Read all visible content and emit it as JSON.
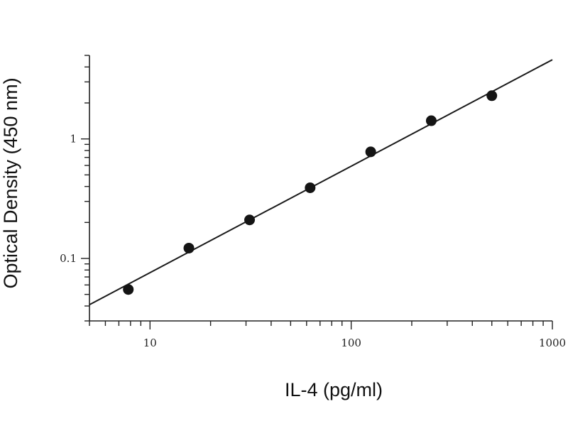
{
  "chart_data": {
    "type": "scatter",
    "title": "",
    "xlabel": "IL-4 (pg/ml)",
    "ylabel": "Optical Density (450 nm)",
    "x_scale": "log",
    "y_scale": "log",
    "xlim": [
      5,
      1000
    ],
    "ylim": [
      0.03,
      5
    ],
    "x_tick_labels": [
      {
        "value": 10,
        "label": "10"
      },
      {
        "value": 100,
        "label": "100"
      },
      {
        "value": 1000,
        "label": "1000"
      }
    ],
    "y_tick_labels": [
      {
        "value": 0.1,
        "label": "0.1"
      },
      {
        "value": 1,
        "label": "1"
      }
    ],
    "grid": false,
    "legend": "none",
    "series": [
      {
        "x": [
          7.8,
          15.6,
          31.25,
          62.5,
          125,
          250,
          500
        ],
        "y": [
          0.055,
          0.122,
          0.21,
          0.39,
          0.78,
          1.42,
          2.3
        ]
      }
    ],
    "fit_line": {
      "x": [
        5,
        1000
      ],
      "y": [
        0.041,
        4.6
      ]
    },
    "colors": {
      "points": "#141414",
      "line": "#1a1a1a",
      "axes": "#222222"
    }
  }
}
